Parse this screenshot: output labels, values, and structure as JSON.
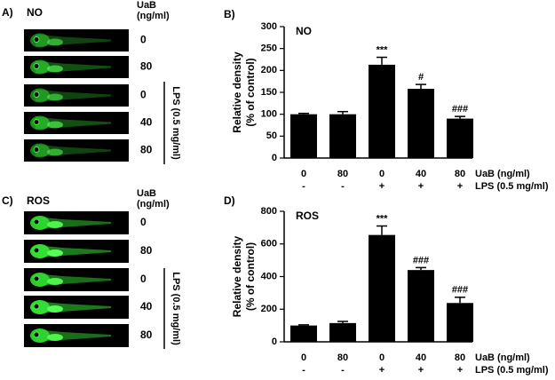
{
  "panels": [
    {
      "letter": "A)",
      "title": "NO",
      "header": [
        "UaB",
        "(ng/ml)"
      ],
      "doses": [
        "0",
        "80",
        "0",
        "40",
        "80"
      ],
      "bracket": "LPS (0.5 mg/ml)"
    },
    {
      "letter": "C)",
      "title": "ROS",
      "header": [
        "UaB",
        "(ng/ml)"
      ],
      "doses": [
        "0",
        "80",
        "0",
        "40",
        "80"
      ],
      "bracket": "LPS (0.5 mg/ml)"
    }
  ],
  "chart_data": [
    {
      "type": "bar",
      "letter": "B)",
      "title": "NO",
      "ylabel": [
        "Relative density",
        "(% of control)"
      ],
      "categories": [
        "0",
        "80",
        "0",
        "40",
        "80"
      ],
      "categories_2": [
        "-",
        "-",
        "+",
        "+",
        "+"
      ],
      "category_names": [
        "UaB (ng/ml)",
        "LPS (0.5 mg/ml)"
      ],
      "values": [
        100,
        100,
        213,
        158,
        90
      ],
      "errors": [
        2,
        6,
        17,
        10,
        5
      ],
      "annotations": [
        null,
        null,
        "***",
        "#",
        "###"
      ],
      "color": "#000000",
      "ylim": [
        0,
        300
      ],
      "yticks": [
        0,
        50,
        100,
        150,
        200,
        250,
        300
      ]
    },
    {
      "type": "bar",
      "letter": "D)",
      "title": "ROS",
      "ylabel": [
        "Relative density",
        "(% of control)"
      ],
      "categories": [
        "0",
        "80",
        "0",
        "40",
        "80"
      ],
      "categories_2": [
        "-",
        "-",
        "+",
        "+",
        "+"
      ],
      "category_names": [
        "UaB (ng/ml)",
        "LPS (0.5 mg/ml)"
      ],
      "values": [
        100,
        115,
        655,
        440,
        238
      ],
      "errors": [
        4,
        10,
        55,
        15,
        35
      ],
      "annotations": [
        null,
        null,
        "***",
        "###",
        "###"
      ],
      "color": "#000000",
      "ylim": [
        0,
        800
      ],
      "yticks": [
        0,
        200,
        400,
        600,
        800
      ]
    }
  ]
}
